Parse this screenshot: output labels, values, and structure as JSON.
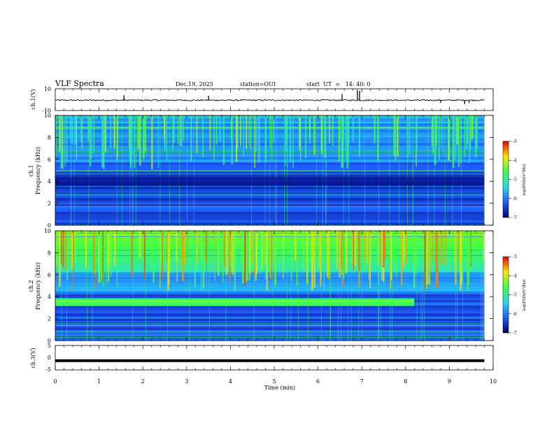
{
  "header": {
    "title": "VLF Spectra",
    "date": "Dec.19, 2025",
    "station": "station=OUI",
    "start_ut": "start  UT  =   14: 40: 0"
  },
  "colors": {
    "spec_low": "#00006e",
    "spec_mid": "#1e5cff",
    "spec_cyan": "#27d9f0",
    "spec_green": "#3cff46",
    "spec_yellow": "#ffe600",
    "spec_red": "#e60000",
    "trace": "#000000"
  },
  "chart_data": [
    {
      "type": "line",
      "name": "ch1-waveform",
      "ylabel": "ch.1(V)",
      "ylim": [
        -10,
        10
      ],
      "y_ticks": [
        "10",
        "-10"
      ],
      "x": [
        0,
        1,
        1.57,
        2,
        3,
        3.5,
        4,
        5,
        6,
        6.55,
        6.9,
        7,
        8,
        9,
        9.35,
        9.8
      ],
      "values": [
        -0.5,
        -0.4,
        -0.5,
        -0.3,
        -0.5,
        -0.4,
        -0.5,
        -0.4,
        -0.5,
        -0.3,
        -0.4,
        -0.5,
        -0.4,
        -0.6,
        -0.5,
        -0.5
      ]
    },
    {
      "type": "heatmap",
      "name": "ch1-spectrogram",
      "ylabel": "ch.1\nFrequency (kHz)",
      "y_ticks": [
        "0",
        "2",
        "4",
        "6",
        "8",
        "10"
      ],
      "ylim": [
        0,
        10
      ],
      "xlim": [
        0,
        10
      ],
      "data_end_min": 9.8,
      "colorbar": {
        "label": "log(PSD)(V²/Hz)",
        "ticks": [
          "-3",
          "-4",
          "-5",
          "-6",
          "-7"
        ],
        "range": [
          -7,
          -3
        ]
      }
    },
    {
      "type": "heatmap",
      "name": "ch2-spectrogram",
      "ylabel": "ch.2\nFrequency (kHz)",
      "y_ticks": [
        "0",
        "2",
        "4",
        "6",
        "8",
        "10"
      ],
      "ylim": [
        0,
        10
      ],
      "xlim": [
        0,
        10
      ],
      "data_end_min": 9.8,
      "band_khz": 3.5,
      "band_end_min": 8.2,
      "colorbar": {
        "label": "log(PSD)(V²/Hz)",
        "ticks": [
          "-3",
          "-4",
          "-5",
          "-6",
          "-7"
        ],
        "range": [
          -7,
          -3
        ]
      }
    },
    {
      "type": "line",
      "name": "ch3-waveform",
      "ylabel": "ch.3(V)",
      "ylim": [
        -5,
        5
      ],
      "y_ticks": [
        "5",
        "0",
        "-5"
      ],
      "x": [
        0,
        9.8
      ],
      "values": [
        -1.2,
        -1.2
      ]
    }
  ],
  "xaxis": {
    "label": "Time (min)",
    "ticks": [
      "0",
      "1",
      "2",
      "3",
      "4",
      "5",
      "6",
      "7",
      "8",
      "9",
      "10"
    ],
    "xlim": [
      0,
      10
    ]
  }
}
